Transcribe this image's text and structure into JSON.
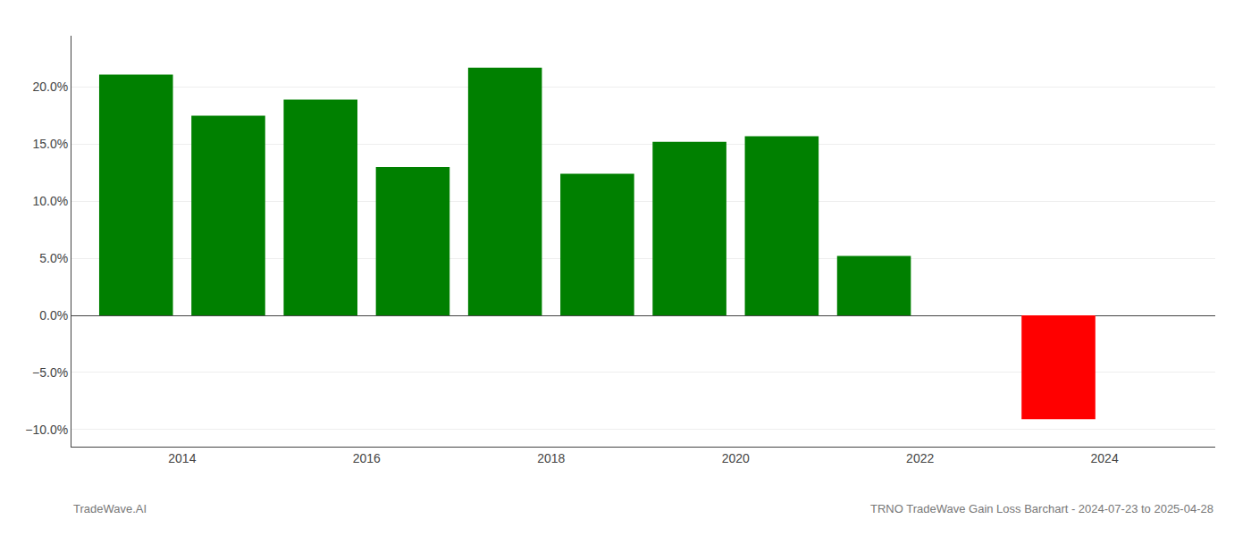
{
  "chart_data": {
    "type": "bar",
    "x": [
      2013.5,
      2014.5,
      2015.5,
      2016.5,
      2017.5,
      2018.5,
      2019.5,
      2020.5,
      2021.5,
      2023.5
    ],
    "values": [
      0.211,
      0.175,
      0.189,
      0.13,
      0.217,
      0.124,
      0.152,
      0.157,
      0.052,
      -0.091
    ],
    "colors": [
      "#008000",
      "#008000",
      "#008000",
      "#008000",
      "#008000",
      "#008000",
      "#008000",
      "#008000",
      "#008000",
      "#ff0000"
    ],
    "xlim": [
      2012.8,
      2025.2
    ],
    "xticks": [
      2014,
      2016,
      2018,
      2020,
      2022,
      2024
    ],
    "ylim": [
      -0.115,
      0.245
    ],
    "yticks": [
      {
        "value": -0.1,
        "label": "−10.0%"
      },
      {
        "value": -0.05,
        "label": "−5.0%"
      },
      {
        "value": 0.0,
        "label": "0.0%"
      },
      {
        "value": 0.05,
        "label": "5.0%"
      },
      {
        "value": 0.1,
        "label": "10.0%"
      },
      {
        "value": 0.15,
        "label": "15.0%"
      },
      {
        "value": 0.2,
        "label": "20.0%"
      }
    ],
    "grid": true,
    "annotations": [
      "TradeWave.AI",
      "TRNO TradeWave Gain Loss Barchart - 2024-07-23 to 2025-04-28"
    ]
  }
}
